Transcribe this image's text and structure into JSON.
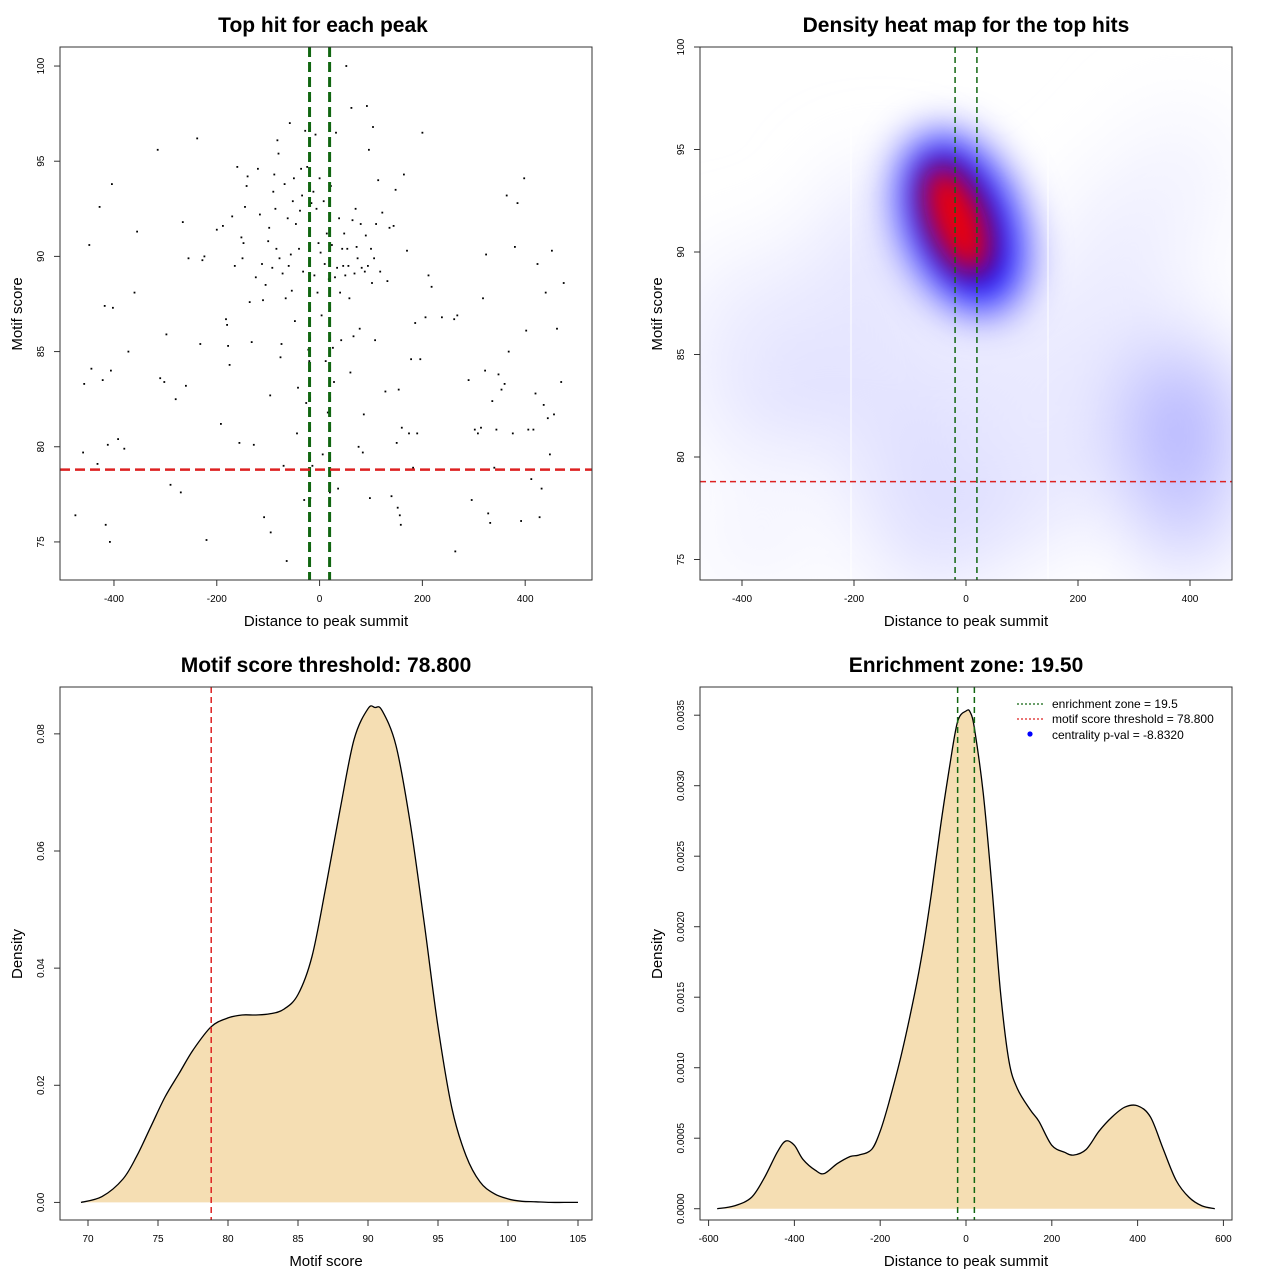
{
  "chart_data": [
    {
      "id": "scatter",
      "type": "scatter",
      "title": "Top hit for each peak",
      "xlabel": "Distance to peak summit",
      "ylabel": "Motif score",
      "xlim": [
        -505,
        530
      ],
      "ylim": [
        73,
        101
      ],
      "xticks": [
        -400,
        -200,
        0,
        200,
        400
      ],
      "yticks": [
        75,
        80,
        85,
        90,
        95,
        100
      ],
      "threshold_line": 78.8,
      "zone_lines": [
        -19.5,
        19.5
      ],
      "colors": {
        "points": "#000000",
        "threshold": "#dd2222",
        "zone": "#116611"
      },
      "points": [
        [
          -475,
          76.4
        ],
        [
          -460,
          79.7
        ],
        [
          -458,
          83.3
        ],
        [
          -448,
          90.6
        ],
        [
          -444,
          84.1
        ],
        [
          -432,
          79.1
        ],
        [
          -428,
          92.6
        ],
        [
          -422,
          83.5
        ],
        [
          -418,
          87.4
        ],
        [
          -416,
          75.9
        ],
        [
          -412,
          80.1
        ],
        [
          -408,
          75.0
        ],
        [
          -406,
          84.0
        ],
        [
          -404,
          93.8
        ],
        [
          -402,
          87.3
        ],
        [
          -392,
          80.4
        ],
        [
          -380,
          79.9
        ],
        [
          -372,
          85.0
        ],
        [
          -360,
          88.1
        ],
        [
          -355,
          91.3
        ],
        [
          -315,
          95.6
        ],
        [
          -310,
          83.6
        ],
        [
          -302,
          83.4
        ],
        [
          -298,
          85.9
        ],
        [
          -290,
          78.0
        ],
        [
          -280,
          82.5
        ],
        [
          -270,
          77.6
        ],
        [
          -266,
          91.8
        ],
        [
          -260,
          83.2
        ],
        [
          -255,
          89.9
        ],
        [
          -238,
          96.2
        ],
        [
          -232,
          85.4
        ],
        [
          -228,
          89.8
        ],
        [
          -224,
          90.0
        ],
        [
          -220,
          75.1
        ],
        [
          -200,
          91.4
        ],
        [
          -192,
          81.2
        ],
        [
          -188,
          91.6
        ],
        [
          -182,
          86.7
        ],
        [
          -180,
          86.4
        ],
        [
          -178,
          85.3
        ],
        [
          -175,
          84.3
        ],
        [
          -170,
          92.1
        ],
        [
          -165,
          89.5
        ],
        [
          -160,
          94.7
        ],
        [
          -156,
          80.2
        ],
        [
          -152,
          91.0
        ],
        [
          -150,
          89.9
        ],
        [
          -148,
          90.7
        ],
        [
          -145,
          92.6
        ],
        [
          -142,
          93.7
        ],
        [
          -140,
          94.2
        ],
        [
          -136,
          87.6
        ],
        [
          -132,
          85.5
        ],
        [
          -128,
          80.1
        ],
        [
          -124,
          88.9
        ],
        [
          -120,
          94.6
        ],
        [
          -116,
          92.2
        ],
        [
          -112,
          89.6
        ],
        [
          -110,
          87.7
        ],
        [
          -108,
          76.3
        ],
        [
          -105,
          88.5
        ],
        [
          -100,
          90.8
        ],
        [
          -98,
          91.5
        ],
        [
          -96,
          82.7
        ],
        [
          -95,
          75.5
        ],
        [
          -92,
          89.4
        ],
        [
          -90,
          93.4
        ],
        [
          -88,
          94.3
        ],
        [
          -86,
          92.5
        ],
        [
          -84,
          90.4
        ],
        [
          -82,
          96.1
        ],
        [
          -80,
          95.4
        ],
        [
          -78,
          89.9
        ],
        [
          -76,
          84.7
        ],
        [
          -74,
          85.4
        ],
        [
          -72,
          89.1
        ],
        [
          -70,
          79.0
        ],
        [
          -68,
          93.8
        ],
        [
          -66,
          87.8
        ],
        [
          -64,
          74.0
        ],
        [
          -62,
          92.0
        ],
        [
          -60,
          89.5
        ],
        [
          -58,
          97.0
        ],
        [
          -56,
          90.1
        ],
        [
          -54,
          88.2
        ],
        [
          -52,
          92.9
        ],
        [
          -50,
          94.1
        ],
        [
          -48,
          86.6
        ],
        [
          -46,
          91.7
        ],
        [
          -44,
          80.7
        ],
        [
          -42,
          83.1
        ],
        [
          -40,
          90.4
        ],
        [
          -38,
          92.4
        ],
        [
          -36,
          94.6
        ],
        [
          -34,
          93.2
        ],
        [
          -32,
          89.2
        ],
        [
          -30,
          77.2
        ],
        [
          -28,
          96.6
        ],
        [
          -26,
          82.3
        ],
        [
          -24,
          94.7
        ],
        [
          -22,
          85.1
        ],
        [
          -20,
          84.5
        ],
        [
          -18,
          77.3
        ],
        [
          -16,
          92.8
        ],
        [
          -14,
          79.0
        ],
        [
          -12,
          93.4
        ],
        [
          -10,
          89.0
        ],
        [
          -8,
          96.4
        ],
        [
          -6,
          92.5
        ],
        [
          -4,
          88.1
        ],
        [
          -2,
          90.7
        ],
        [
          0,
          94.1
        ],
        [
          2,
          90.2
        ],
        [
          4,
          86.9
        ],
        [
          6,
          79.6
        ],
        [
          8,
          92.9
        ],
        [
          10,
          89.6
        ],
        [
          12,
          84.5
        ],
        [
          14,
          91.2
        ],
        [
          16,
          81.8
        ],
        [
          18,
          88.8
        ],
        [
          20,
          77.6
        ],
        [
          22,
          93.7
        ],
        [
          24,
          90.6
        ],
        [
          26,
          85.2
        ],
        [
          28,
          83.4
        ],
        [
          30,
          88.9
        ],
        [
          32,
          96.5
        ],
        [
          34,
          89.4
        ],
        [
          36,
          77.8
        ],
        [
          38,
          92.0
        ],
        [
          40,
          88.1
        ],
        [
          42,
          85.6
        ],
        [
          44,
          90.4
        ],
        [
          46,
          89.5
        ],
        [
          48,
          91.2
        ],
        [
          50,
          89.0
        ],
        [
          52,
          100.0
        ],
        [
          54,
          90.4
        ],
        [
          56,
          89.5
        ],
        [
          58,
          87.8
        ],
        [
          60,
          83.9
        ],
        [
          62,
          97.8
        ],
        [
          64,
          91.9
        ],
        [
          66,
          85.8
        ],
        [
          68,
          89.1
        ],
        [
          70,
          92.5
        ],
        [
          72,
          90.5
        ],
        [
          74,
          89.9
        ],
        [
          76,
          80.0
        ],
        [
          78,
          86.2
        ],
        [
          80,
          91.7
        ],
        [
          82,
          89.4
        ],
        [
          84,
          79.7
        ],
        [
          86,
          81.7
        ],
        [
          88,
          89.2
        ],
        [
          90,
          91.1
        ],
        [
          92,
          97.9
        ],
        [
          94,
          89.5
        ],
        [
          96,
          95.6
        ],
        [
          98,
          77.3
        ],
        [
          100,
          90.4
        ],
        [
          102,
          88.6
        ],
        [
          104,
          96.8
        ],
        [
          106,
          89.9
        ],
        [
          108,
          85.6
        ],
        [
          110,
          91.7
        ],
        [
          114,
          94.0
        ],
        [
          118,
          89.2
        ],
        [
          122,
          92.3
        ],
        [
          128,
          82.9
        ],
        [
          132,
          88.7
        ],
        [
          136,
          91.5
        ],
        [
          140,
          77.4
        ],
        [
          144,
          91.6
        ],
        [
          148,
          93.5
        ],
        [
          150,
          80.2
        ],
        [
          152,
          76.8
        ],
        [
          154,
          83.0
        ],
        [
          156,
          76.4
        ],
        [
          158,
          75.9
        ],
        [
          160,
          81.0
        ],
        [
          164,
          94.3
        ],
        [
          170,
          90.3
        ],
        [
          174,
          80.7
        ],
        [
          178,
          84.6
        ],
        [
          182,
          78.9
        ],
        [
          186,
          86.5
        ],
        [
          190,
          80.7
        ],
        [
          196,
          84.6
        ],
        [
          200,
          96.5
        ],
        [
          206,
          86.8
        ],
        [
          212,
          89.0
        ],
        [
          218,
          88.4
        ],
        [
          238,
          86.8
        ],
        [
          262,
          86.7
        ],
        [
          264,
          74.5
        ],
        [
          268,
          86.9
        ],
        [
          290,
          83.5
        ],
        [
          296,
          77.2
        ],
        [
          302,
          80.9
        ],
        [
          308,
          80.7
        ],
        [
          314,
          81.0
        ],
        [
          318,
          87.8
        ],
        [
          322,
          84.0
        ],
        [
          324,
          90.1
        ],
        [
          328,
          76.5
        ],
        [
          332,
          76.0
        ],
        [
          336,
          82.4
        ],
        [
          340,
          78.9
        ],
        [
          344,
          80.9
        ],
        [
          348,
          83.8
        ],
        [
          354,
          83.0
        ],
        [
          360,
          83.3
        ],
        [
          364,
          93.2
        ],
        [
          368,
          85.0
        ],
        [
          376,
          80.7
        ],
        [
          380,
          90.5
        ],
        [
          385,
          92.8
        ],
        [
          392,
          76.1
        ],
        [
          398,
          94.1
        ],
        [
          402,
          86.1
        ],
        [
          406,
          80.9
        ],
        [
          412,
          78.3
        ],
        [
          416,
          80.9
        ],
        [
          420,
          82.8
        ],
        [
          424,
          89.6
        ],
        [
          428,
          76.3
        ],
        [
          432,
          77.8
        ],
        [
          436,
          82.2
        ],
        [
          440,
          88.1
        ],
        [
          444,
          81.5
        ],
        [
          448,
          79.6
        ],
        [
          452,
          90.3
        ],
        [
          456,
          81.7
        ],
        [
          462,
          86.2
        ],
        [
          470,
          83.4
        ],
        [
          475,
          88.6
        ]
      ]
    },
    {
      "id": "heatmap",
      "type": "heatmap",
      "title": "Density heat map for the top hits",
      "xlabel": "Distance to peak summit",
      "ylabel": "Motif score",
      "xlim": [
        -475,
        475
      ],
      "ylim": [
        74,
        100
      ],
      "xticks": [
        -400,
        -200,
        0,
        200,
        400
      ],
      "yticks": [
        75,
        80,
        85,
        90,
        95,
        100
      ],
      "threshold_line": 78.8,
      "zone_lines": [
        -19.5,
        19.5
      ],
      "colors": {
        "low": "#ffffff",
        "mid": "#0000ff",
        "high": "#ff0000",
        "threshold": "#dd2222",
        "zone": "#116611"
      }
    },
    {
      "id": "score-density",
      "type": "area",
      "title": "Motif score threshold: 78.800",
      "xlabel": "Motif score",
      "ylabel": "Density",
      "xlim": [
        68,
        106
      ],
      "ylim": [
        -0.003,
        0.088
      ],
      "xticks": [
        70,
        75,
        80,
        85,
        90,
        95,
        100,
        105
      ],
      "yticks": [
        "0.00",
        "0.02",
        "0.04",
        "0.06",
        "0.08"
      ],
      "threshold_line": 78.8,
      "colors": {
        "fill": "#f5deb3",
        "line": "#000000",
        "threshold": "#dd2222"
      },
      "x": [
        69.5,
        71,
        72.5,
        73.5,
        74.5,
        75.5,
        76.5,
        77.5,
        78.8,
        80,
        81,
        82,
        83,
        84,
        85,
        86,
        87,
        88,
        89,
        90,
        90.5,
        91,
        92,
        93,
        94,
        95,
        96,
        97,
        98,
        99,
        100,
        101,
        102,
        103,
        104,
        105
      ],
      "values": [
        0.0,
        0.001,
        0.004,
        0.008,
        0.013,
        0.018,
        0.022,
        0.026,
        0.03,
        0.0315,
        0.032,
        0.032,
        0.0322,
        0.033,
        0.0355,
        0.042,
        0.054,
        0.067,
        0.079,
        0.0843,
        0.0845,
        0.084,
        0.078,
        0.065,
        0.048,
        0.03,
        0.016,
        0.008,
        0.0035,
        0.0015,
        0.0006,
        0.0002,
        0.0001,
        0.0,
        0.0,
        0.0
      ]
    },
    {
      "id": "distance-density",
      "type": "area",
      "title": "Enrichment zone: 19.50",
      "xlabel": "Distance to peak summit",
      "ylabel": "Density",
      "xlim": [
        -620,
        620
      ],
      "ylim": [
        -8e-05,
        0.0037
      ],
      "xticks": [
        -600,
        -400,
        -200,
        0,
        200,
        400,
        600
      ],
      "yticks": [
        "0.0000",
        "0.0005",
        "0.0010",
        "0.0015",
        "0.0020",
        "0.0025",
        "0.0030",
        "0.0035"
      ],
      "zone_lines": [
        -19.5,
        19.5
      ],
      "colors": {
        "fill": "#f5deb3",
        "line": "#000000",
        "zone": "#116611",
        "threshold": "#dd2222",
        "pval": "#0000ff"
      },
      "legend_position": "top-right",
      "legend": [
        "enrichment zone = 19.5",
        "motif score threshold = 78.800",
        "centrality p-val = -8.8320"
      ],
      "x": [
        -580,
        -540,
        -500,
        -470,
        -440,
        -420,
        -400,
        -380,
        -350,
        -330,
        -300,
        -270,
        -250,
        -220,
        -200,
        -180,
        -150,
        -120,
        -100,
        -80,
        -60,
        -40,
        -20,
        0,
        10,
        20,
        40,
        60,
        80,
        100,
        120,
        150,
        170,
        200,
        230,
        250,
        280,
        310,
        340,
        370,
        400,
        430,
        460,
        490,
        520,
        550,
        580
      ],
      "values": [
        0.0,
        2e-05,
        8e-05,
        0.00022,
        0.0004,
        0.00048,
        0.00045,
        0.00035,
        0.00027,
        0.00025,
        0.00032,
        0.00037,
        0.00038,
        0.00042,
        0.00055,
        0.00075,
        0.0011,
        0.00152,
        0.00185,
        0.00225,
        0.0027,
        0.0031,
        0.00345,
        0.00353,
        0.00352,
        0.0034,
        0.00295,
        0.0023,
        0.00155,
        0.00105,
        0.00085,
        0.0007,
        0.00062,
        0.00045,
        0.0004,
        0.00038,
        0.00042,
        0.00055,
        0.00065,
        0.00072,
        0.00073,
        0.00065,
        0.00042,
        0.0002,
        8e-05,
        2e-05,
        0.0
      ]
    }
  ]
}
